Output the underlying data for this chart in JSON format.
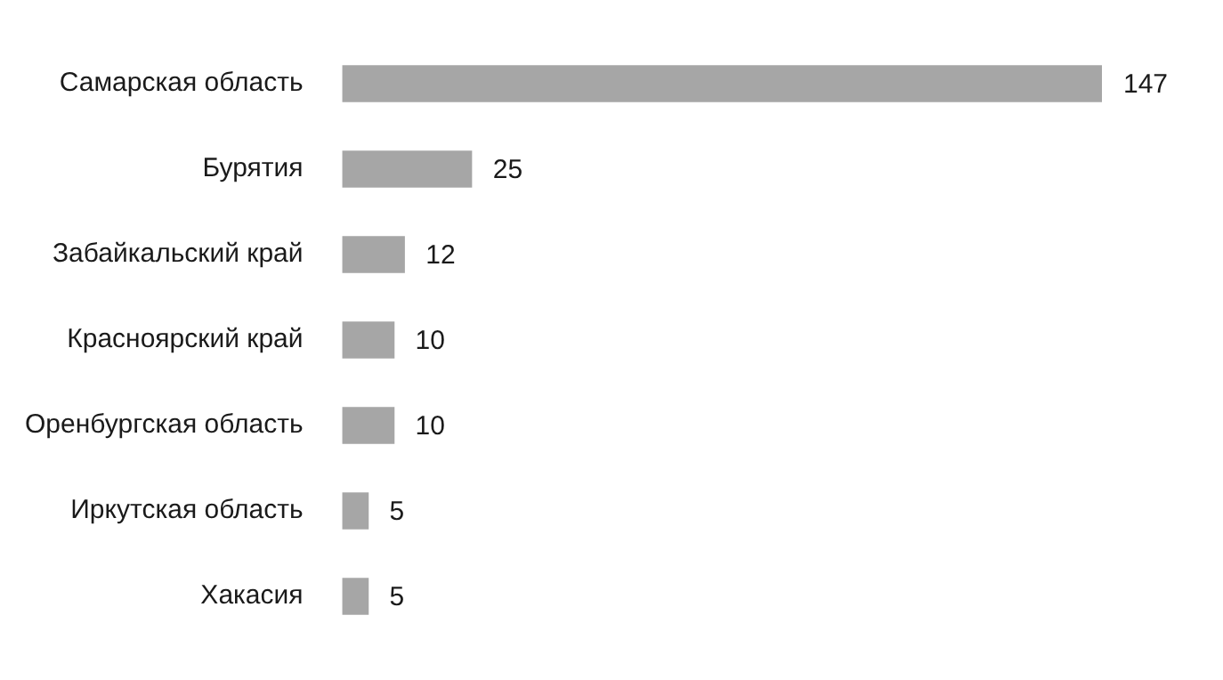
{
  "chart_data": {
    "type": "bar",
    "orientation": "horizontal",
    "data_labels": true,
    "categories": [
      "Самарская область",
      "Бурятия",
      "Забайкальский край",
      "Красноярский край",
      "Оренбургская область",
      "Иркутская область",
      "Хакасия"
    ],
    "values": [
      147,
      25,
      12,
      10,
      10,
      5,
      5
    ],
    "color": "#a6a6a6"
  }
}
